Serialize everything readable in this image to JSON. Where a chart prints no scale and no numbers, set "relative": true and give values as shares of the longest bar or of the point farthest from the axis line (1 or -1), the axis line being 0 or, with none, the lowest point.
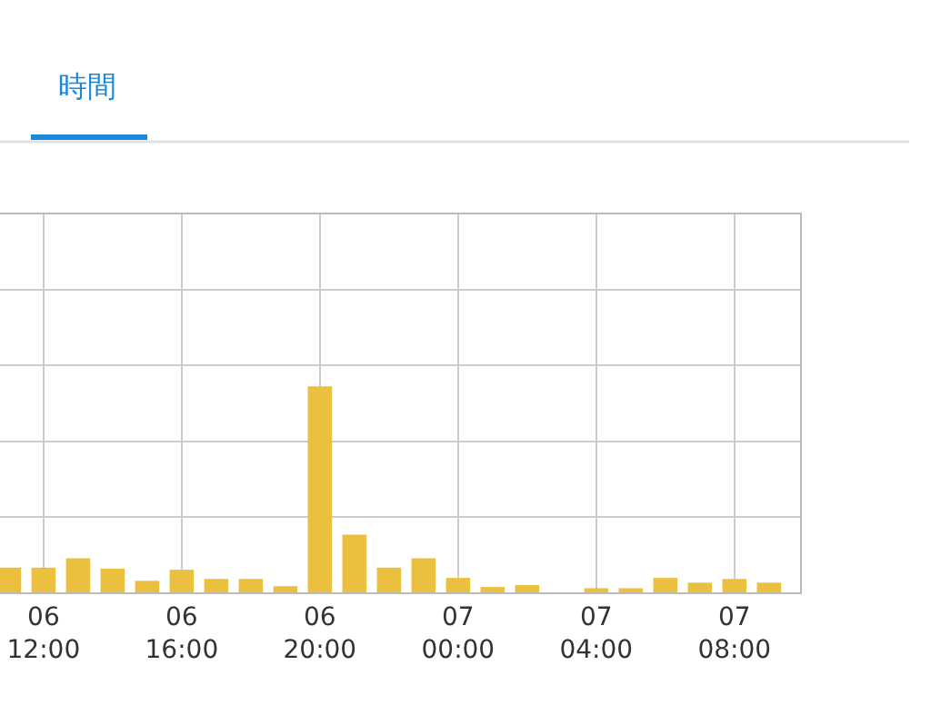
{
  "chart_data": {
    "type": "bar",
    "relative": true,
    "grid": true,
    "color": "#ecc03f",
    "annotations": [
      "時間"
    ],
    "categories": [
      null,
      "06\n12:00",
      null,
      null,
      null,
      "06\n16:00",
      null,
      null,
      null,
      "06\n20:00",
      null,
      null,
      null,
      "07\n00:00",
      null,
      null,
      null,
      "07\n04:00",
      null,
      null,
      null,
      "07\n08:00",
      null
    ],
    "values": [
      0.12,
      0.12,
      0.165,
      0.115,
      0.056,
      0.11,
      0.065,
      0.065,
      0.03,
      1,
      0.28,
      0.12,
      0.165,
      0.07,
      0.026,
      0.035,
      0,
      0.02,
      0.02,
      0.07,
      0.047,
      0.065,
      0.047
    ]
  }
}
